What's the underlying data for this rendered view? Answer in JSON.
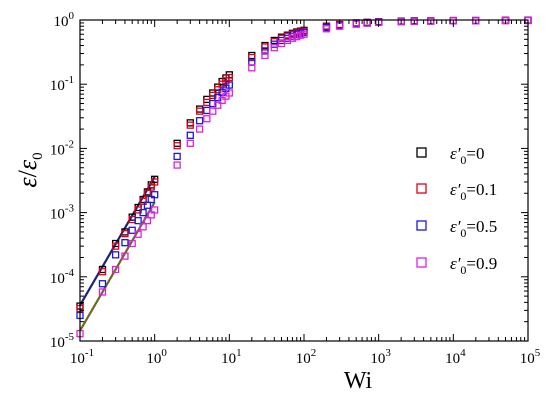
{
  "chart_data": {
    "type": "scatter",
    "xscale": "log",
    "yscale": "log",
    "xlim": [
      0.1,
      100000
    ],
    "ylim": [
      1e-05,
      1
    ],
    "xlabel": "Wi",
    "ylabel": {
      "main": "ε",
      "sub": "0"
    },
    "x_ticks": [
      {
        "base": "10",
        "exp": "-1",
        "value": 0.1
      },
      {
        "base": "10",
        "exp": "0",
        "value": 1
      },
      {
        "base": "10",
        "exp": "1",
        "value": 10
      },
      {
        "base": "10",
        "exp": "2",
        "value": 100
      },
      {
        "base": "10",
        "exp": "3",
        "value": 1000
      },
      {
        "base": "10",
        "exp": "4",
        "value": 10000
      },
      {
        "base": "10",
        "exp": "5",
        "value": 100000
      }
    ],
    "y_ticks": [
      {
        "base": "10",
        "exp": "-5",
        "value": 1e-05
      },
      {
        "base": "10",
        "exp": "-4",
        "value": 0.0001
      },
      {
        "base": "10",
        "exp": "-3",
        "value": 0.001
      },
      {
        "base": "10",
        "exp": "-2",
        "value": 0.01
      },
      {
        "base": "10",
        "exp": "-1",
        "value": 0.1
      },
      {
        "base": "10",
        "exp": "0",
        "value": 1
      }
    ],
    "grid": false,
    "legend_position": "right",
    "series": [
      {
        "symbol": "ε′",
        "sub": "0",
        "value_label": "=0",
        "color": "#000000",
        "x": [
          0.1,
          0.2,
          0.3,
          0.4,
          0.5,
          0.6,
          0.7,
          0.8,
          0.9,
          1,
          2,
          3,
          4,
          5,
          6,
          7,
          8,
          9,
          10,
          20,
          30,
          40,
          50,
          60,
          70,
          80,
          90,
          100,
          200,
          300,
          500,
          700,
          1000,
          2000,
          3000,
          5000,
          10000,
          20000,
          50000,
          100000
        ],
        "y": [
          3.5e-05,
          0.00013,
          0.00033,
          0.0005,
          0.00085,
          0.0012,
          0.0016,
          0.0021,
          0.0027,
          0.0033,
          0.012,
          0.025,
          0.041,
          0.058,
          0.073,
          0.09,
          0.11,
          0.125,
          0.14,
          0.28,
          0.4,
          0.48,
          0.54,
          0.58,
          0.62,
          0.65,
          0.67,
          0.69,
          0.8,
          0.85,
          0.9,
          0.92,
          0.94,
          0.96,
          0.97,
          0.97,
          0.98,
          0.98,
          0.99,
          0.99
        ]
      },
      {
        "symbol": "ε′",
        "sub": "0",
        "value_label": "=0.1",
        "color": "#e0001b",
        "x": [
          0.1,
          0.2,
          0.3,
          0.4,
          0.5,
          0.6,
          0.7,
          0.8,
          0.9,
          1,
          2,
          3,
          4,
          5,
          6,
          7,
          8,
          9,
          10,
          20,
          30,
          40,
          50,
          60,
          70,
          80,
          90,
          100,
          200,
          300,
          500,
          700,
          1000,
          2000,
          3000,
          5000,
          10000,
          20000,
          50000,
          100000
        ],
        "y": [
          3.2e-05,
          0.00012,
          0.0003,
          0.00047,
          0.00078,
          0.0011,
          0.0015,
          0.002,
          0.0025,
          0.003,
          0.011,
          0.023,
          0.038,
          0.052,
          0.067,
          0.082,
          0.1,
          0.113,
          0.127,
          0.26,
          0.38,
          0.46,
          0.52,
          0.56,
          0.6,
          0.63,
          0.65,
          0.67,
          0.78,
          0.84,
          0.89,
          0.91,
          0.93,
          0.95,
          0.96,
          0.97,
          0.98,
          0.98,
          0.99,
          0.99
        ]
      },
      {
        "symbol": "ε′",
        "sub": "0",
        "value_label": "=0.5",
        "color": "#1a1adb",
        "x": [
          0.1,
          0.2,
          0.3,
          0.4,
          0.5,
          0.6,
          0.7,
          0.8,
          0.9,
          1,
          2,
          3,
          4,
          5,
          6,
          7,
          8,
          9,
          10,
          20,
          30,
          40,
          50,
          60,
          70,
          80,
          90,
          100,
          200,
          300,
          500,
          700,
          1000,
          2000,
          3000,
          5000,
          10000,
          20000,
          50000,
          100000
        ],
        "y": [
          2.5e-05,
          7.8e-05,
          0.00022,
          0.00034,
          0.00053,
          0.00075,
          0.001,
          0.0013,
          0.0016,
          0.0019,
          0.0075,
          0.016,
          0.027,
          0.039,
          0.05,
          0.062,
          0.075,
          0.086,
          0.097,
          0.22,
          0.33,
          0.42,
          0.48,
          0.52,
          0.56,
          0.6,
          0.62,
          0.64,
          0.76,
          0.82,
          0.88,
          0.9,
          0.93,
          0.95,
          0.96,
          0.96,
          0.97,
          0.98,
          0.98,
          0.99
        ]
      },
      {
        "symbol": "ε′",
        "sub": "0",
        "value_label": "=0.9",
        "color": "#e020e0",
        "x": [
          0.1,
          0.2,
          0.3,
          0.4,
          0.5,
          0.6,
          0.7,
          0.8,
          0.9,
          1,
          2,
          3,
          4,
          5,
          6,
          7,
          8,
          9,
          10,
          20,
          30,
          40,
          50,
          60,
          70,
          80,
          90,
          100,
          200,
          300,
          500,
          700,
          1000,
          2000,
          3000,
          5000,
          10000,
          20000,
          50000,
          100000
        ],
        "y": [
          1.3e-05,
          5.8e-05,
          0.00013,
          0.00021,
          0.00033,
          0.00046,
          0.0006,
          0.00075,
          0.00092,
          0.0011,
          0.0055,
          0.012,
          0.02,
          0.029,
          0.038,
          0.047,
          0.056,
          0.065,
          0.073,
          0.18,
          0.28,
          0.37,
          0.43,
          0.48,
          0.52,
          0.55,
          0.58,
          0.6,
          0.73,
          0.8,
          0.86,
          0.89,
          0.92,
          0.94,
          0.95,
          0.96,
          0.97,
          0.97,
          0.98,
          0.98
        ]
      }
    ],
    "fit_lines": [
      {
        "color": "#1a237e",
        "x": [
          0.1,
          1
        ],
        "y": [
          3.6e-05,
          0.0036
        ]
      },
      {
        "color": "#6b6b1f",
        "x": [
          0.1,
          1
        ],
        "y": [
          1.45e-05,
          0.00145
        ]
      }
    ]
  }
}
